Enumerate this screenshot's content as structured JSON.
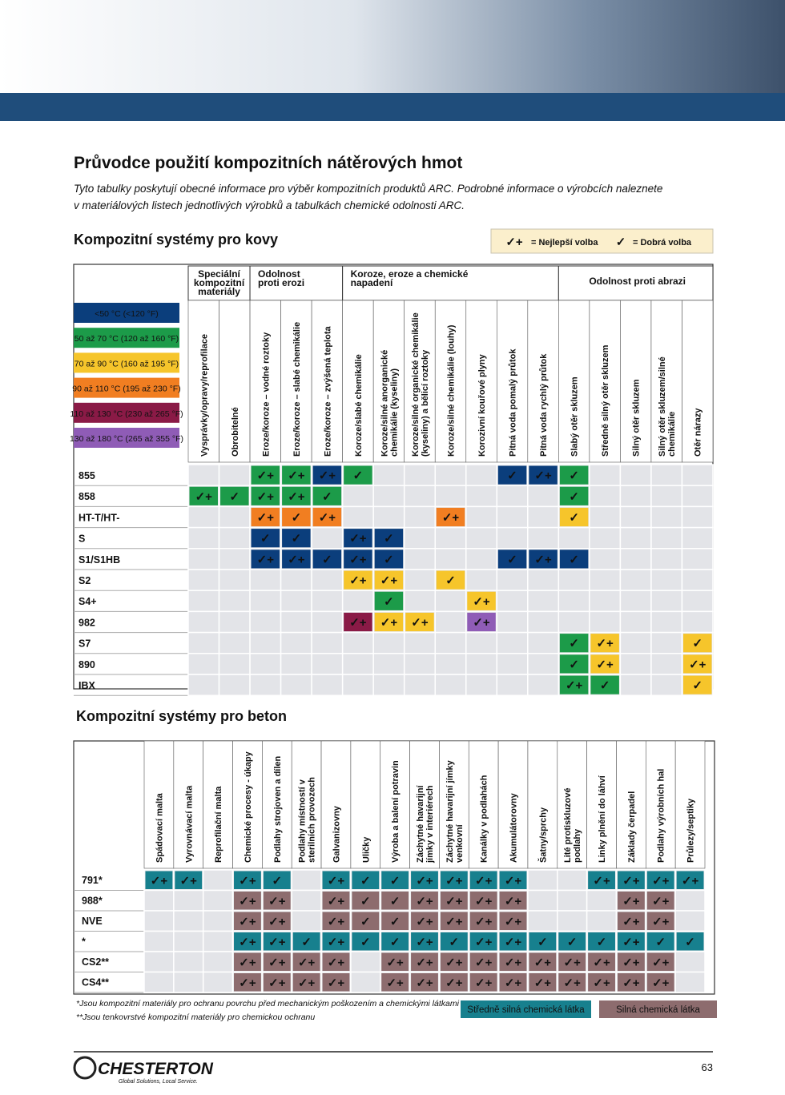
{
  "header": {
    "title": "Průvodce použití kompozitních nátěrových hmot",
    "intro": [
      "Tyto tabulky poskytují obecné informace pro výběr kompozitních produktů ARC. Podrobné informace o výrobcích naleznete",
      "v materiálových listech jednotlivých výrobků a tabulkách chemické odolnosti ARC."
    ]
  },
  "metal": {
    "title": "Kompozitní systémy pro kovy",
    "legend": [
      {
        "mark": "✓+",
        "label": "= Nejlepší volba"
      },
      {
        "mark": "✓",
        "label": "= Dobrá volba"
      }
    ],
    "temperatures": [
      {
        "label": "<50 °C (<120 °F)",
        "color": "#0b3e7c"
      },
      {
        "label": "50 až 70 °C (120 až 160 °F)",
        "color": "#1c9b49"
      },
      {
        "label": "70 až 90 °C (160 až 195 °F)",
        "color": "#f6c52b"
      },
      {
        "label": "90 až 110 °C (195 až 230 °F)",
        "color": "#f17e21"
      },
      {
        "label": "110 až 130 °C (230 až 265 °F)",
        "color": "#8a1a46"
      },
      {
        "label": "130 až 180 °C (265 až 355 °F)",
        "color": "#8f5cb6"
      }
    ],
    "groups": [
      {
        "lines": [
          "Speciální",
          "kompozitní",
          "materiály"
        ],
        "columns": [
          [
            "Vysprávky/opravy/reprofilace"
          ],
          [
            "Obrobitelné"
          ]
        ]
      },
      {
        "lines": [
          "Odolnost",
          "proti erozi"
        ],
        "columns": [
          [
            "Eroze/koroze – vodné roztoky"
          ],
          [
            "Eroze/koroze – slabé chemikálie"
          ],
          [
            "Eroze/koroze – zvýšená teplota"
          ]
        ]
      },
      {
        "lines": [
          "Koroze, eroze a  chemické",
          "napadení"
        ],
        "columns": [
          [
            "Koroze/slabé chemikálie"
          ],
          [
            "Koroze/silné anorganické",
            "chemikálie (kyseliny)"
          ],
          [
            "Koroze/silné organické chemikálie",
            "(kyseliny) a bělicí roztoky"
          ],
          [
            "Koroze/silné chemikálie (louhy)"
          ],
          [
            "Korozivní kouřové plyny"
          ],
          [
            "Pitná voda pomalý průtok"
          ],
          [
            "Pitná voda rychlý průtok"
          ]
        ]
      },
      {
        "lines": [
          "Odolnost  proti  abrazi"
        ],
        "columns": [
          [
            "Slabý otěr skluzem"
          ],
          [
            "Středně silný otěr skluzem"
          ],
          [
            "Silný otěr skluzem"
          ],
          [
            "Silný otěr skluzem/silné",
            "chemikálie"
          ],
          [
            "Otěr nárazy"
          ]
        ]
      }
    ],
    "rows": [
      {
        "name": "855",
        "cells": [
          null,
          null,
          {
            "m": "✓+",
            "c": "#1c9b49"
          },
          {
            "m": "✓+",
            "c": "#1c9b49"
          },
          {
            "m": "✓+",
            "c": "#0b3e7c"
          },
          {
            "m": "✓",
            "c": "#1c9b49"
          },
          null,
          null,
          null,
          null,
          {
            "m": "✓",
            "c": "#0b3e7c"
          },
          {
            "m": "✓+",
            "c": "#0b3e7c"
          },
          {
            "m": "✓",
            "c": "#1c9b49"
          },
          null,
          null,
          null,
          null
        ]
      },
      {
        "name": "858",
        "cells": [
          {
            "m": "✓+",
            "c": "#1c9b49"
          },
          {
            "m": "✓",
            "c": "#1c9b49"
          },
          {
            "m": "✓+",
            "c": "#1c9b49"
          },
          {
            "m": "✓+",
            "c": "#1c9b49"
          },
          {
            "m": "✓",
            "c": "#1c9b49"
          },
          null,
          null,
          null,
          null,
          null,
          null,
          null,
          {
            "m": "✓",
            "c": "#1c9b49"
          },
          null,
          null,
          null,
          null
        ]
      },
      {
        "name": "HT-T/HT-",
        "cells": [
          null,
          null,
          {
            "m": "✓+",
            "c": "#f17e21"
          },
          {
            "m": "✓",
            "c": "#f17e21"
          },
          {
            "m": "✓+",
            "c": "#f17e21"
          },
          null,
          null,
          null,
          {
            "m": "✓+",
            "c": "#f17e21"
          },
          null,
          null,
          null,
          {
            "m": "✓",
            "c": "#f6c52b"
          },
          null,
          null,
          null,
          null
        ]
      },
      {
        "name": "S",
        "cells": [
          null,
          null,
          {
            "m": "✓",
            "c": "#0b3e7c"
          },
          {
            "m": "✓",
            "c": "#0b3e7c"
          },
          null,
          {
            "m": "✓+",
            "c": "#0b3e7c"
          },
          {
            "m": "✓",
            "c": "#0b3e7c"
          },
          null,
          null,
          null,
          null,
          null,
          null,
          null,
          null,
          null,
          null
        ]
      },
      {
        "name": "S1/S1HB",
        "cells": [
          null,
          null,
          {
            "m": "✓+",
            "c": "#0b3e7c"
          },
          {
            "m": "✓+",
            "c": "#0b3e7c"
          },
          {
            "m": "✓",
            "c": "#0b3e7c"
          },
          {
            "m": "✓+",
            "c": "#0b3e7c"
          },
          {
            "m": "✓",
            "c": "#0b3e7c"
          },
          null,
          null,
          null,
          {
            "m": "✓",
            "c": "#0b3e7c"
          },
          {
            "m": "✓+",
            "c": "#0b3e7c"
          },
          {
            "m": "✓",
            "c": "#0b3e7c"
          },
          null,
          null,
          null,
          null
        ]
      },
      {
        "name": "S2",
        "cells": [
          null,
          null,
          null,
          null,
          null,
          {
            "m": "✓+",
            "c": "#f6c52b"
          },
          {
            "m": "✓+",
            "c": "#f6c52b"
          },
          null,
          {
            "m": "✓",
            "c": "#f6c52b"
          },
          null,
          null,
          null,
          null,
          null,
          null,
          null,
          null
        ]
      },
      {
        "name": "S4+",
        "cells": [
          null,
          null,
          null,
          null,
          null,
          null,
          {
            "m": "✓",
            "c": "#1c9b49"
          },
          null,
          null,
          {
            "m": "✓+",
            "c": "#f6c52b"
          },
          null,
          null,
          null,
          null,
          null,
          null,
          null
        ]
      },
      {
        "name": "982",
        "cells": [
          null,
          null,
          null,
          null,
          null,
          {
            "m": "✓+",
            "c": "#8a1a46"
          },
          {
            "m": "✓+",
            "c": "#f6c52b"
          },
          {
            "m": "✓+",
            "c": "#f6c52b"
          },
          null,
          {
            "m": "✓+",
            "c": "#8f5cb6"
          },
          null,
          null,
          null,
          null,
          null,
          null,
          null
        ]
      },
      {
        "name": "S7",
        "cells": [
          null,
          null,
          null,
          null,
          null,
          null,
          null,
          null,
          null,
          null,
          null,
          null,
          {
            "m": "✓",
            "c": "#1c9b49"
          },
          {
            "m": "✓+",
            "c": "#f6c52b"
          },
          null,
          null,
          {
            "m": "✓",
            "c": "#f6c52b"
          }
        ]
      },
      {
        "name": "890",
        "cells": [
          null,
          null,
          null,
          null,
          null,
          null,
          null,
          null,
          null,
          null,
          null,
          null,
          {
            "m": "✓",
            "c": "#1c9b49"
          },
          {
            "m": "✓+",
            "c": "#f6c52b"
          },
          null,
          null,
          {
            "m": "✓+",
            "c": "#f6c52b"
          }
        ]
      },
      {
        "name": "IBX",
        "cells": [
          null,
          null,
          null,
          null,
          null,
          null,
          null,
          null,
          null,
          null,
          null,
          null,
          {
            "m": "✓+",
            "c": "#1c9b49"
          },
          {
            "m": "✓",
            "c": "#1c9b49"
          },
          null,
          null,
          {
            "m": "✓",
            "c": "#f6c52b"
          }
        ]
      }
    ]
  },
  "concrete": {
    "title": "Kompozitní systémy pro beton",
    "columns": [
      [
        "Spádovací malta"
      ],
      [
        "Vyrovnávací  malta"
      ],
      [
        "Reprofilační malta"
      ],
      [
        "Chemické procesy - úkapy"
      ],
      [
        "Podlahy strojoven a dílen"
      ],
      [
        "Podlahy místností v",
        "sterilních provozech"
      ],
      [
        "Galvanizovny"
      ],
      [
        "Uličky"
      ],
      [
        "Výroba a balení potravin"
      ],
      [
        "Záchytné  havarijní",
        "jímky v interiérech"
      ],
      [
        "Záchytné havarijní jímky",
        "venkovní"
      ],
      [
        "Kanálky v podlahách"
      ],
      [
        "Akumulátorovny"
      ],
      [
        "Šatny/sprchy"
      ],
      [
        "Lité  protiskluzové",
        "podlahy"
      ],
      [
        "Linky plnění do láhví"
      ],
      [
        "Základy  čerpadel"
      ],
      [
        "Podlahy výrobních hal"
      ],
      [
        "Průlezy/septiky"
      ]
    ],
    "rows": [
      {
        "name": "791*",
        "cells": [
          {
            "m": "✓+",
            "c": "#17808e"
          },
          {
            "m": "✓+",
            "c": "#17808e"
          },
          null,
          {
            "m": "✓+",
            "c": "#17808e"
          },
          {
            "m": "✓",
            "c": "#17808e"
          },
          null,
          {
            "m": "✓+",
            "c": "#17808e"
          },
          {
            "m": "✓",
            "c": "#17808e"
          },
          {
            "m": "✓",
            "c": "#17808e"
          },
          {
            "m": "✓+",
            "c": "#17808e"
          },
          {
            "m": "✓+",
            "c": "#17808e"
          },
          {
            "m": "✓+",
            "c": "#17808e"
          },
          {
            "m": "✓+",
            "c": "#17808e"
          },
          null,
          null,
          {
            "m": "✓+",
            "c": "#17808e"
          },
          {
            "m": "✓+",
            "c": "#17808e"
          },
          {
            "m": "✓+",
            "c": "#17808e"
          },
          {
            "m": "✓+",
            "c": "#17808e"
          }
        ]
      },
      {
        "name": "988*",
        "cells": [
          null,
          null,
          null,
          {
            "m": "✓+",
            "c": "#8d6c6e"
          },
          {
            "m": "✓+",
            "c": "#8d6c6e"
          },
          null,
          {
            "m": "✓+",
            "c": "#8d6c6e"
          },
          {
            "m": "✓",
            "c": "#8d6c6e"
          },
          {
            "m": "✓",
            "c": "#8d6c6e"
          },
          {
            "m": "✓+",
            "c": "#8d6c6e"
          },
          {
            "m": "✓+",
            "c": "#8d6c6e"
          },
          {
            "m": "✓+",
            "c": "#8d6c6e"
          },
          {
            "m": "✓+",
            "c": "#8d6c6e"
          },
          null,
          null,
          null,
          {
            "m": "✓+",
            "c": "#8d6c6e"
          },
          {
            "m": "✓+",
            "c": "#8d6c6e"
          },
          null
        ]
      },
      {
        "name": "NVE",
        "cells": [
          null,
          null,
          null,
          {
            "m": "✓+",
            "c": "#8d6c6e"
          },
          {
            "m": "✓+",
            "c": "#8d6c6e"
          },
          null,
          {
            "m": "✓+",
            "c": "#8d6c6e"
          },
          {
            "m": "✓",
            "c": "#8d6c6e"
          },
          {
            "m": "✓",
            "c": "#8d6c6e"
          },
          {
            "m": "✓+",
            "c": "#8d6c6e"
          },
          {
            "m": "✓+",
            "c": "#8d6c6e"
          },
          {
            "m": "✓+",
            "c": "#8d6c6e"
          },
          {
            "m": "✓+",
            "c": "#8d6c6e"
          },
          null,
          null,
          null,
          {
            "m": "✓+",
            "c": "#8d6c6e"
          },
          {
            "m": "✓+",
            "c": "#8d6c6e"
          },
          null
        ]
      },
      {
        "name": "*",
        "cells": [
          null,
          null,
          null,
          {
            "m": "✓+",
            "c": "#17808e"
          },
          {
            "m": "✓+",
            "c": "#17808e"
          },
          {
            "m": "✓",
            "c": "#17808e"
          },
          {
            "m": "✓+",
            "c": "#17808e"
          },
          {
            "m": "✓",
            "c": "#17808e"
          },
          {
            "m": "✓",
            "c": "#17808e"
          },
          {
            "m": "✓+",
            "c": "#17808e"
          },
          {
            "m": "✓",
            "c": "#17808e"
          },
          {
            "m": "✓+",
            "c": "#17808e"
          },
          {
            "m": "✓+",
            "c": "#17808e"
          },
          {
            "m": "✓",
            "c": "#17808e"
          },
          {
            "m": "✓",
            "c": "#17808e"
          },
          {
            "m": "✓",
            "c": "#17808e"
          },
          {
            "m": "✓+",
            "c": "#17808e"
          },
          {
            "m": "✓",
            "c": "#17808e"
          },
          {
            "m": "✓",
            "c": "#17808e"
          }
        ]
      },
      {
        "name": "CS2**",
        "cells": [
          null,
          null,
          null,
          {
            "m": "✓+",
            "c": "#8d6c6e"
          },
          {
            "m": "✓+",
            "c": "#8d6c6e"
          },
          {
            "m": "✓+",
            "c": "#8d6c6e"
          },
          {
            "m": "✓+",
            "c": "#8d6c6e"
          },
          null,
          {
            "m": "✓+",
            "c": "#8d6c6e"
          },
          {
            "m": "✓+",
            "c": "#8d6c6e"
          },
          {
            "m": "✓+",
            "c": "#8d6c6e"
          },
          {
            "m": "✓+",
            "c": "#8d6c6e"
          },
          {
            "m": "✓+",
            "c": "#8d6c6e"
          },
          {
            "m": "✓+",
            "c": "#8d6c6e"
          },
          {
            "m": "✓+",
            "c": "#8d6c6e"
          },
          {
            "m": "✓+",
            "c": "#8d6c6e"
          },
          {
            "m": "✓+",
            "c": "#8d6c6e"
          },
          {
            "m": "✓+",
            "c": "#8d6c6e"
          },
          null
        ]
      },
      {
        "name": "CS4**",
        "cells": [
          null,
          null,
          null,
          {
            "m": "✓+",
            "c": "#8d6c6e"
          },
          {
            "m": "✓+",
            "c": "#8d6c6e"
          },
          {
            "m": "✓+",
            "c": "#8d6c6e"
          },
          {
            "m": "✓+",
            "c": "#8d6c6e"
          },
          null,
          {
            "m": "✓+",
            "c": "#8d6c6e"
          },
          {
            "m": "✓+",
            "c": "#8d6c6e"
          },
          {
            "m": "✓+",
            "c": "#8d6c6e"
          },
          {
            "m": "✓+",
            "c": "#8d6c6e"
          },
          {
            "m": "✓+",
            "c": "#8d6c6e"
          },
          {
            "m": "✓+",
            "c": "#8d6c6e"
          },
          {
            "m": "✓+",
            "c": "#8d6c6e"
          },
          {
            "m": "✓+",
            "c": "#8d6c6e"
          },
          {
            "m": "✓+",
            "c": "#8d6c6e"
          },
          {
            "m": "✓+",
            "c": "#8d6c6e"
          },
          null
        ]
      }
    ],
    "footnotes": [
      "*Jsou kompozitní materiály pro ochranu povrchu před mechanickým poškozením a chemickými látkami",
      "**Jsou tenkovrstvé kompozitní materiály pro chemickou ochranu"
    ],
    "legend": [
      {
        "label": "Středně silná chemická látka",
        "color": "#17808e"
      },
      {
        "label": "Silná chemická látka",
        "color": "#8d6c6e"
      }
    ]
  },
  "footer": {
    "brand": "CHESTERTON",
    "tagline": "Global Solutions, Local Service.",
    "page": "63"
  }
}
